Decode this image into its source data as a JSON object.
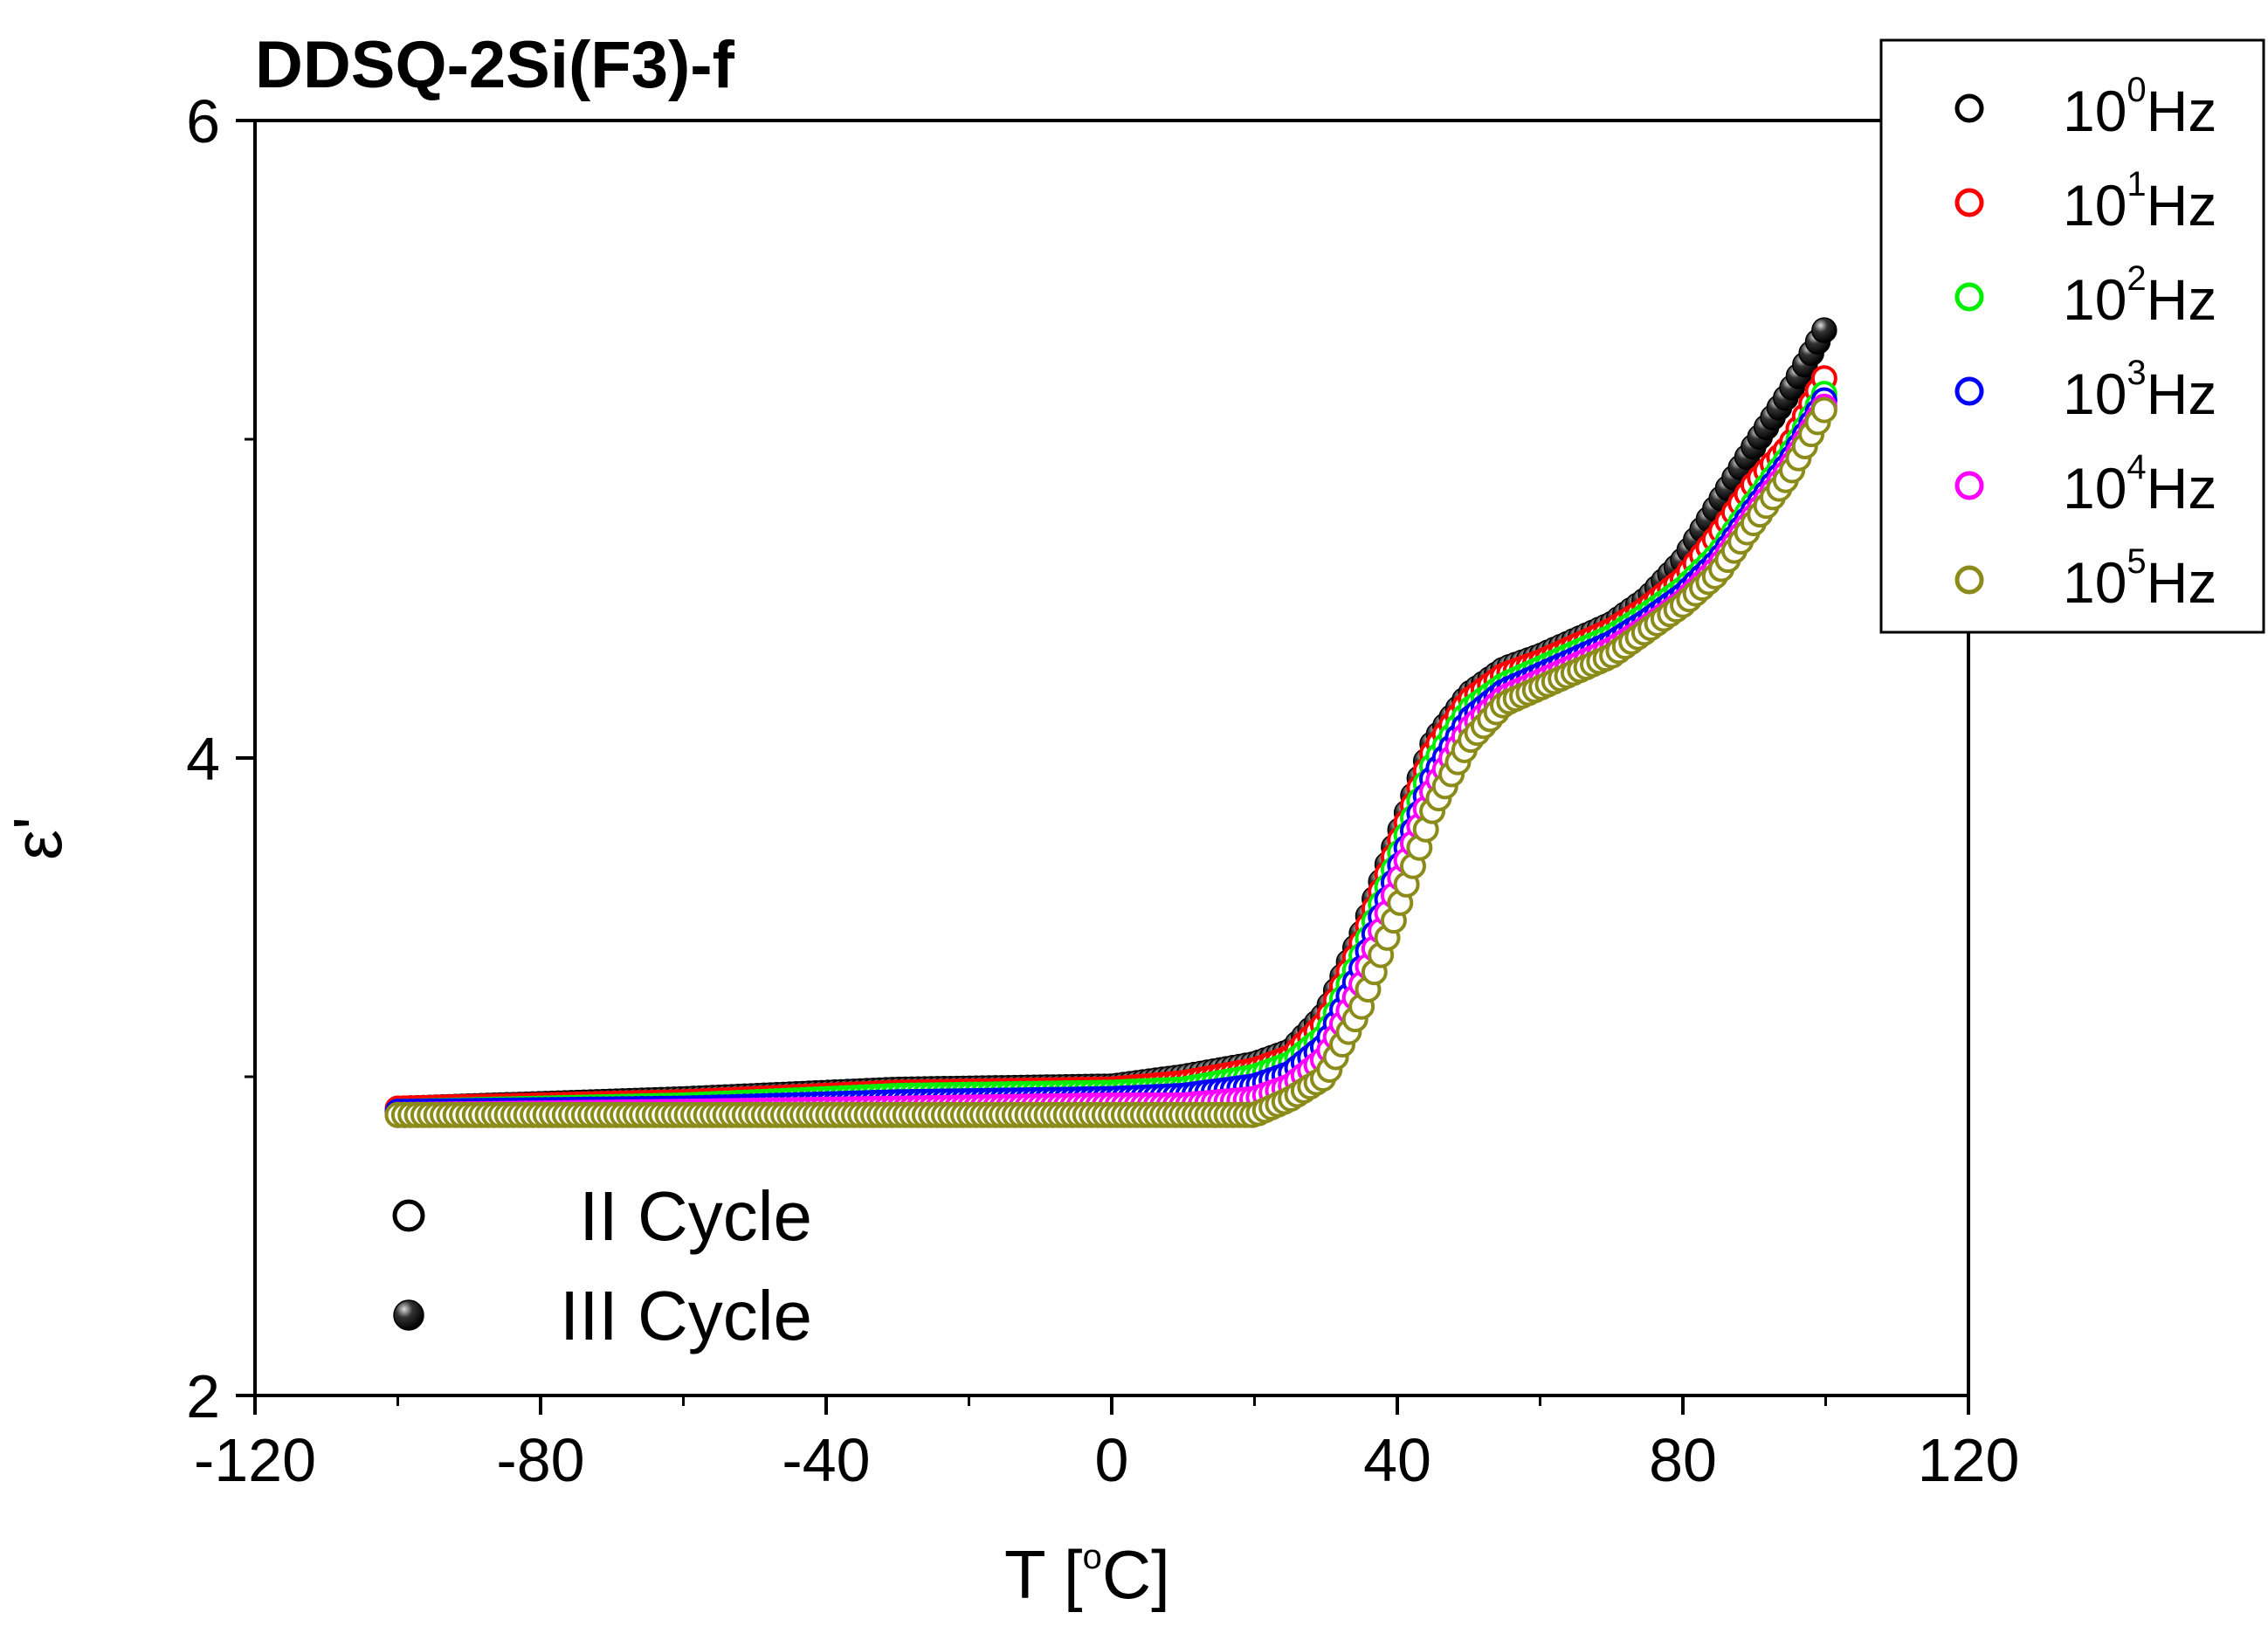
{
  "chart_data": {
    "type": "scatter",
    "title": "DDSQ-2Si(F3)-f",
    "xlabel": {
      "main": "T  [",
      "sup": "o",
      "unit": "C]"
    },
    "ylabel": "ε'",
    "xlim": [
      -120,
      120
    ],
    "ylim": [
      2,
      6
    ],
    "x_ticks": [
      -120,
      -80,
      -40,
      0,
      40,
      80,
      120
    ],
    "y_ticks": [
      2,
      4,
      6
    ],
    "x_range_data": [
      -100,
      100
    ],
    "series": [
      {
        "name": "10^0 Hz",
        "base": "10",
        "exp": "0",
        "unit": "Hz",
        "color": "#000000",
        "points": [
          [
            -100,
            2.9
          ],
          [
            -60,
            2.93
          ],
          [
            -30,
            2.96
          ],
          [
            0,
            2.97
          ],
          [
            10,
            3.0
          ],
          [
            20,
            3.04
          ],
          [
            25,
            3.08
          ],
          [
            30,
            3.2
          ],
          [
            35,
            3.45
          ],
          [
            40,
            3.75
          ],
          [
            45,
            4.05
          ],
          [
            50,
            4.2
          ],
          [
            55,
            4.28
          ],
          [
            60,
            4.32
          ],
          [
            70,
            4.42
          ],
          [
            75,
            4.5
          ],
          [
            80,
            4.62
          ],
          [
            85,
            4.8
          ],
          [
            90,
            4.98
          ],
          [
            95,
            5.15
          ],
          [
            100,
            5.35
          ]
        ]
      },
      {
        "name": "10^1 Hz",
        "base": "10",
        "exp": "1",
        "unit": "Hz",
        "color": "#ff0000",
        "points": [
          [
            -100,
            2.9
          ],
          [
            -60,
            2.92
          ],
          [
            -30,
            2.95
          ],
          [
            0,
            2.96
          ],
          [
            10,
            2.98
          ],
          [
            20,
            3.02
          ],
          [
            25,
            3.06
          ],
          [
            30,
            3.17
          ],
          [
            35,
            3.42
          ],
          [
            40,
            3.72
          ],
          [
            45,
            4.02
          ],
          [
            50,
            4.18
          ],
          [
            55,
            4.26
          ],
          [
            60,
            4.3
          ],
          [
            70,
            4.4
          ],
          [
            75,
            4.47
          ],
          [
            80,
            4.56
          ],
          [
            85,
            4.7
          ],
          [
            90,
            4.86
          ],
          [
            95,
            4.98
          ],
          [
            100,
            5.2
          ]
        ]
      },
      {
        "name": "10^2 Hz",
        "base": "10",
        "exp": "2",
        "unit": "Hz",
        "color": "#00ee00",
        "points": [
          [
            -100,
            2.89
          ],
          [
            -60,
            2.91
          ],
          [
            -30,
            2.94
          ],
          [
            0,
            2.95
          ],
          [
            10,
            2.96
          ],
          [
            20,
            3.0
          ],
          [
            25,
            3.04
          ],
          [
            30,
            3.13
          ],
          [
            35,
            3.38
          ],
          [
            40,
            3.68
          ],
          [
            45,
            3.98
          ],
          [
            50,
            4.15
          ],
          [
            55,
            4.23
          ],
          [
            60,
            4.28
          ],
          [
            70,
            4.38
          ],
          [
            75,
            4.45
          ],
          [
            80,
            4.53
          ],
          [
            85,
            4.64
          ],
          [
            90,
            4.8
          ],
          [
            95,
            4.95
          ],
          [
            100,
            5.15
          ]
        ]
      },
      {
        "name": "10^3 Hz",
        "base": "10",
        "exp": "3",
        "unit": "Hz",
        "color": "#0000ff",
        "points": [
          [
            -100,
            2.89
          ],
          [
            -60,
            2.9
          ],
          [
            -30,
            2.92
          ],
          [
            0,
            2.93
          ],
          [
            10,
            2.94
          ],
          [
            20,
            2.97
          ],
          [
            25,
            3.01
          ],
          [
            30,
            3.1
          ],
          [
            35,
            3.34
          ],
          [
            40,
            3.64
          ],
          [
            45,
            3.94
          ],
          [
            50,
            4.12
          ],
          [
            55,
            4.21
          ],
          [
            60,
            4.26
          ],
          [
            70,
            4.36
          ],
          [
            75,
            4.43
          ],
          [
            80,
            4.51
          ],
          [
            85,
            4.62
          ],
          [
            90,
            4.78
          ],
          [
            95,
            4.93
          ],
          [
            100,
            5.13
          ]
        ]
      },
      {
        "name": "10^4 Hz",
        "base": "10",
        "exp": "4",
        "unit": "Hz",
        "color": "#ff00ff",
        "points": [
          [
            -100,
            2.88
          ],
          [
            -60,
            2.89
          ],
          [
            -30,
            2.9
          ],
          [
            0,
            2.91
          ],
          [
            10,
            2.91
          ],
          [
            20,
            2.93
          ],
          [
            25,
            2.97
          ],
          [
            30,
            3.06
          ],
          [
            35,
            3.29
          ],
          [
            40,
            3.6
          ],
          [
            45,
            3.9
          ],
          [
            50,
            4.09
          ],
          [
            55,
            4.19
          ],
          [
            60,
            4.24
          ],
          [
            70,
            4.34
          ],
          [
            75,
            4.41
          ],
          [
            80,
            4.49
          ],
          [
            85,
            4.6
          ],
          [
            90,
            4.76
          ],
          [
            95,
            4.91
          ],
          [
            100,
            5.11
          ]
        ]
      },
      {
        "name": "10^5 Hz",
        "base": "10",
        "exp": "5",
        "unit": "Hz",
        "color": "#8b8b1a",
        "points": [
          [
            -100,
            2.88
          ],
          [
            -60,
            2.88
          ],
          [
            -30,
            2.88
          ],
          [
            0,
            2.88
          ],
          [
            10,
            2.88
          ],
          [
            20,
            2.88
          ],
          [
            25,
            2.93
          ],
          [
            30,
            3.0
          ],
          [
            35,
            3.22
          ],
          [
            40,
            3.52
          ],
          [
            45,
            3.84
          ],
          [
            50,
            4.05
          ],
          [
            55,
            4.17
          ],
          [
            60,
            4.22
          ],
          [
            70,
            4.32
          ],
          [
            75,
            4.4
          ],
          [
            80,
            4.48
          ],
          [
            85,
            4.58
          ],
          [
            90,
            4.74
          ],
          [
            95,
            4.89
          ],
          [
            100,
            5.1
          ]
        ]
      }
    ],
    "cycle_legend": [
      {
        "label": "II Cycle",
        "marker": "open-circle"
      },
      {
        "label": "III Cycle",
        "marker": "filled-sphere"
      }
    ]
  }
}
